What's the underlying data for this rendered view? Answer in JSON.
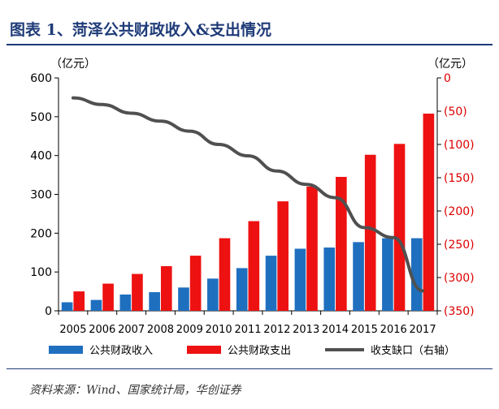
{
  "title": "图表 1、菏泽公共财政收入&支出情况",
  "left_unit": "（亿元）",
  "right_unit": "（亿元）",
  "source": "资料来源：Wind、国家统计局，华创证券",
  "colors": {
    "revenue": "#1f6fbf",
    "expenditure": "#ee1111",
    "gap": "#505050",
    "right_axis": "#dd0000",
    "title": "#1f3b78"
  },
  "chart_data": {
    "type": "bar",
    "categories": [
      "2005",
      "2006",
      "2007",
      "2008",
      "2009",
      "2010",
      "2011",
      "2012",
      "2013",
      "2014",
      "2015",
      "2016",
      "2017"
    ],
    "series": [
      {
        "name": "公共财政收入",
        "type": "bar",
        "axis": "left",
        "values": [
          22,
          28,
          42,
          48,
          60,
          83,
          110,
          142,
          160,
          163,
          177,
          187,
          187
        ]
      },
      {
        "name": "公共财政支出",
        "type": "bar",
        "axis": "left",
        "values": [
          50,
          70,
          95,
          115,
          142,
          187,
          231,
          282,
          320,
          345,
          402,
          430,
          508
        ]
      },
      {
        "name": "收支缺口（右轴）",
        "type": "line",
        "axis": "right",
        "values": [
          -30,
          -40,
          -53,
          -65,
          -80,
          -100,
          -117,
          -140,
          -160,
          -180,
          -225,
          -240,
          -320
        ]
      }
    ],
    "left_axis": {
      "range": [
        0,
        600
      ],
      "ticks": [
        0,
        100,
        200,
        300,
        400,
        500,
        600
      ],
      "tick_labels": [
        "0",
        "100",
        "200",
        "300",
        "400",
        "500",
        "600"
      ]
    },
    "right_axis": {
      "range": [
        -350,
        0
      ],
      "ticks": [
        0,
        -50,
        -100,
        -150,
        -200,
        -250,
        -300,
        -350
      ],
      "tick_labels": [
        "0",
        "(50)",
        "(100)",
        "(150)",
        "(200)",
        "(250)",
        "(300)",
        "(350)"
      ]
    },
    "legend_position": "bottom",
    "grid": false
  }
}
